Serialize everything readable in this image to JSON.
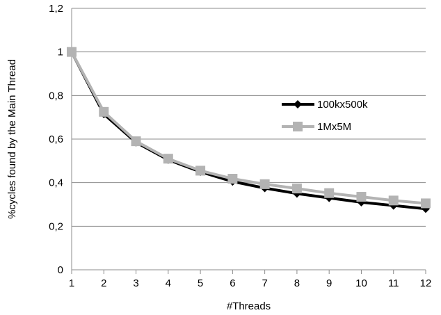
{
  "chart_data": {
    "type": "line",
    "title": "",
    "xlabel": "#Threads",
    "ylabel": "%cycles found by the Main Thread",
    "x": [
      1,
      2,
      3,
      4,
      5,
      6,
      7,
      8,
      9,
      10,
      11,
      12
    ],
    "xticks": [
      "1",
      "2",
      "3",
      "4",
      "5",
      "6",
      "7",
      "8",
      "9",
      "10",
      "11",
      "12"
    ],
    "ylim": [
      0,
      1.2
    ],
    "yticks": [
      {
        "value": 0,
        "label": "0"
      },
      {
        "value": 0.2,
        "label": "0,2"
      },
      {
        "value": 0.4,
        "label": "0,4"
      },
      {
        "value": 0.6,
        "label": "0,6"
      },
      {
        "value": 0.8,
        "label": "0,8"
      },
      {
        "value": 1.0,
        "label": "1"
      },
      {
        "value": 1.2,
        "label": "1,2"
      }
    ],
    "grid": "horizontal",
    "legend_position": "right",
    "series": [
      {
        "name": "100kx500k",
        "color": "#000000",
        "marker": "diamond",
        "values": [
          1.0,
          0.715,
          0.585,
          0.505,
          0.45,
          0.405,
          0.375,
          0.35,
          0.33,
          0.31,
          0.295,
          0.28
        ]
      },
      {
        "name": "1Mx5M",
        "color": "#b3b3b3",
        "marker": "square",
        "values": [
          1.0,
          0.725,
          0.59,
          0.51,
          0.455,
          0.418,
          0.393,
          0.373,
          0.352,
          0.335,
          0.318,
          0.305
        ]
      }
    ]
  }
}
